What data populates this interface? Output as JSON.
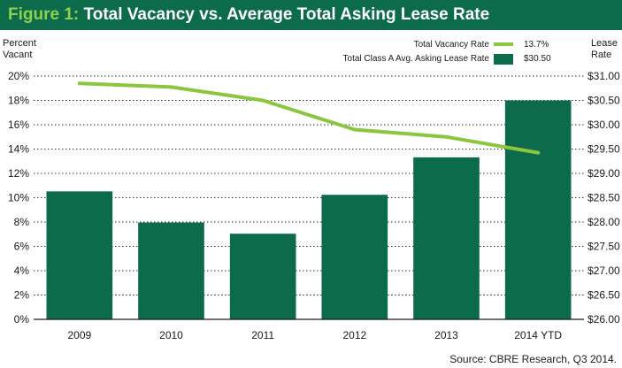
{
  "chart_data": {
    "type": "bar",
    "figure_label": "Figure 1:",
    "title": "Total Vacancy vs. Average Total Asking Lease Rate",
    "left_axis_title": [
      "Percent",
      "Vacant"
    ],
    "right_axis_title": [
      "Lease",
      "Rate"
    ],
    "categories": [
      "2009",
      "2010",
      "2011",
      "2012",
      "2013",
      "2014 YTD"
    ],
    "y_left": {
      "min": 0,
      "max": 20,
      "step": 2,
      "ticks": [
        "0%",
        "2%",
        "4%",
        "6%",
        "8%",
        "10%",
        "12%",
        "14%",
        "16%",
        "18%",
        "20%"
      ]
    },
    "y_right": {
      "min": 26.0,
      "max": 31.0,
      "step": 0.5,
      "ticks": [
        "$26.00",
        "$26.50",
        "$27.00",
        "$27.50",
        "$28.00",
        "$28.50",
        "$29.00",
        "$29.50",
        "$30.00",
        "$30.50",
        "$31.00"
      ]
    },
    "series": [
      {
        "name": "Total Class A Avg. Asking Lease Rate",
        "kind": "bar",
        "axis": "right",
        "legend_value": "$30.50",
        "color": "#0b6b4a",
        "values": [
          28.63,
          27.99,
          27.76,
          28.56,
          29.33,
          30.5
        ]
      },
      {
        "name": "Total Vacancy Rate",
        "kind": "line",
        "axis": "left",
        "legend_value": "13.7%",
        "color": "#8cc63f",
        "values": [
          19.4,
          19.1,
          18.0,
          15.6,
          15.0,
          13.7
        ]
      }
    ],
    "grid": "horizontal dotted",
    "legend_position": "top-right",
    "source": "Source: CBRE Research, Q3 2014."
  }
}
